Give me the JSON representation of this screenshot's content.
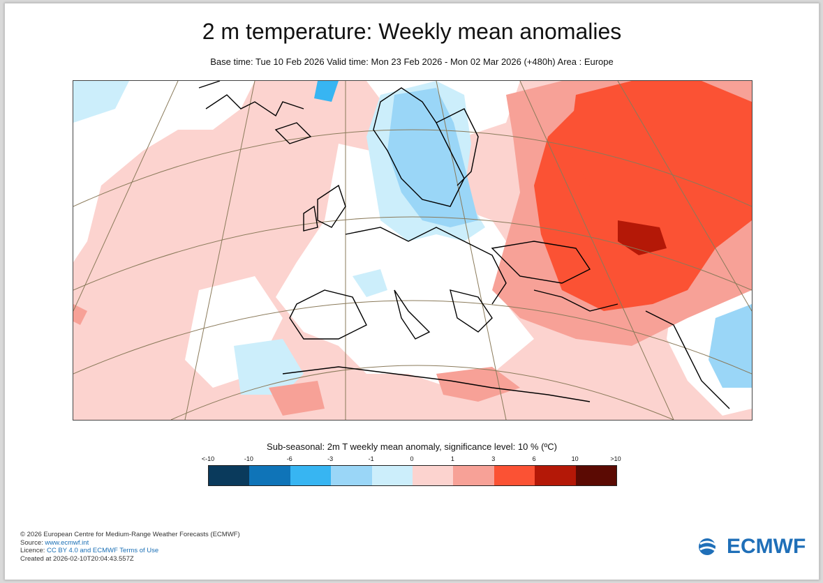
{
  "title": "2 m temperature: Weekly mean anomalies",
  "subtitle": "Base time: Tue 10 Feb 2026 Valid time: Mon 23 Feb 2026 - Mon 02 Mar 2026 (+480h) Area : Europe",
  "legend": {
    "title": "Sub-seasonal: 2m T weekly mean anomaly, significance level: 10 % (ºC)",
    "ticks": [
      "<-10",
      "-10",
      "-6",
      "-3",
      "-1",
      "0",
      "1",
      "3",
      "6",
      "10",
      ">10"
    ],
    "colors": [
      "#0a3a5c",
      "#0f74b8",
      "#37b5f2",
      "#9ad6f7",
      "#cceefb",
      "#fcd3cf",
      "#f7a197",
      "#fb5234",
      "#b41807",
      "#5b0a03"
    ]
  },
  "footer": {
    "copyright": "© 2026 European Centre for Medium-Range Weather Forecasts (ECMWF)",
    "source_label": "Source: ",
    "source_link": "www.ecmwf.int",
    "licence_label": "Licence: ",
    "licence_link": "CC BY 4.0 and ECMWF Terms of Use",
    "created": "Created at 2026-02-10T20:04:43.557Z"
  },
  "logo": {
    "text": "ECMWF",
    "color": "#1f6fb8"
  },
  "map": {
    "background": "#ffffff",
    "anomaly_colors": {
      "light_blue": "#cceefb",
      "blue": "#9ad6f7",
      "pink": "#fcd3cf",
      "salmon": "#f7a197",
      "red": "#fb5234",
      "dark_red": "#b41807"
    },
    "coastline_color": "#000000",
    "graticule_color": "#8a7a5a"
  }
}
